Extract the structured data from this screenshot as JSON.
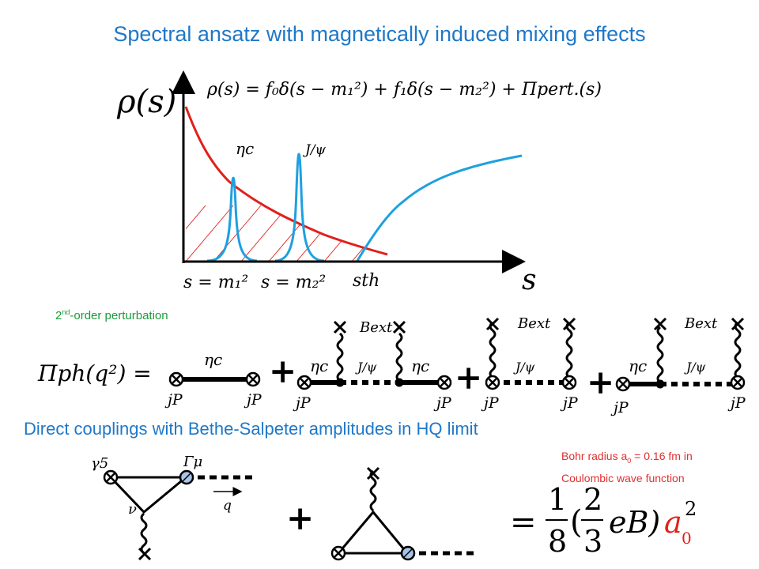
{
  "title": "Spectral ansatz with magnetically induced mixing effects",
  "plot": {
    "ylabel": "ρ(s)",
    "xlabel": "s",
    "formula": "ρ(s) = f₀δ(s − m₁²) + f₁δ(s − m₂²) + Πpert.(s)",
    "peak1_label": "ηc",
    "peak2_label": "J/ψ",
    "x_marks": [
      "s = m₁²",
      "s = m₂²",
      "sth"
    ],
    "colors": {
      "perturbative": "#e0201c",
      "spectral": "#1ea0e0",
      "axis": "#000000"
    }
  },
  "perturbation": {
    "note": "-order perturbation",
    "note_prefix": "2",
    "note_sup": "nd",
    "lhs": "Πph(q²) =",
    "source": "jP",
    "eta": "ηc",
    "jpsi": "J/ψ",
    "field": "Bext",
    "plus": "+"
  },
  "couplings": {
    "subtitle": "Direct couplings with Bethe-Salpeter amplitudes in HQ limit",
    "bohr_line1_pre": "Bohr radius a",
    "bohr_sub": "0",
    "bohr_line1_post": " = 0.16 fm in",
    "bohr_line2": "Coulombic wave function",
    "gamma5": "γ5",
    "gamma_mu": "Γμ",
    "nu": "ν",
    "q": "q",
    "plus": "+",
    "result": "= (1/8)((2/3) eB) a0²",
    "frac1_num": "1",
    "frac1_den": "8",
    "frac2_num": "2",
    "frac2_den": "3",
    "eb": "eB)",
    "a0": "a",
    "a0_sub": "0",
    "a0_sup": "2"
  }
}
